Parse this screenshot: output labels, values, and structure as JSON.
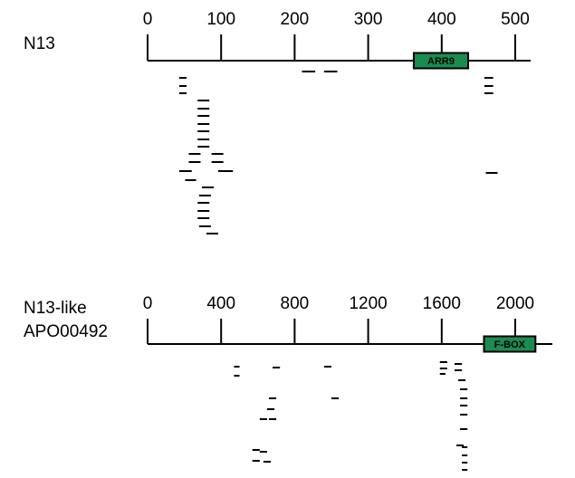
{
  "panels": [
    {
      "label_lines": [
        "N13"
      ],
      "axis": {
        "min": 0,
        "max": 500,
        "ticks": [
          0,
          100,
          200,
          300,
          400,
          500
        ],
        "tick_labels": [
          "0",
          "100",
          "200",
          "300",
          "400",
          "500"
        ],
        "end": 520
      },
      "domain": {
        "label": "ARR9",
        "start": 362,
        "end": 436,
        "color": "#1a8c50"
      },
      "hits": [
        [
          43,
          53,
          86
        ],
        [
          43,
          53,
          95
        ],
        [
          43,
          53,
          103
        ],
        [
          210,
          228,
          79
        ],
        [
          240,
          258,
          79
        ],
        [
          458,
          470,
          86
        ],
        [
          458,
          470,
          95
        ],
        [
          458,
          470,
          103
        ],
        [
          68,
          84,
          111
        ],
        [
          68,
          84,
          120
        ],
        [
          68,
          84,
          128
        ],
        [
          68,
          84,
          137
        ],
        [
          68,
          84,
          145
        ],
        [
          68,
          84,
          154
        ],
        [
          68,
          84,
          162
        ],
        [
          56,
          72,
          170
        ],
        [
          87,
          103,
          170
        ],
        [
          56,
          72,
          179
        ],
        [
          87,
          103,
          179
        ],
        [
          43,
          60,
          189
        ],
        [
          96,
          116,
          189
        ],
        [
          460,
          476,
          191
        ],
        [
          51,
          66,
          199
        ],
        [
          74,
          90,
          207
        ],
        [
          70,
          86,
          216
        ],
        [
          68,
          84,
          224
        ],
        [
          68,
          84,
          233
        ],
        [
          68,
          84,
          241
        ],
        [
          80,
          96,
          258
        ],
        [
          70,
          86,
          250
        ]
      ]
    },
    {
      "label_lines": [
        "N13-like",
        "APO00492"
      ],
      "axis": {
        "min": 0,
        "max": 2000,
        "ticks": [
          0,
          400,
          800,
          1200,
          1600,
          2000
        ],
        "tick_labels": [
          "0",
          "400",
          "800",
          "1200",
          "1600",
          "2000"
        ],
        "end": 2120
      },
      "domain": {
        "label": "F-BOX",
        "start": 1830,
        "end": 2110,
        "color": "#1a8c50"
      },
      "hits": [
        [
          470,
          500,
          405
        ],
        [
          470,
          500,
          415
        ],
        [
          680,
          720,
          406
        ],
        [
          960,
          1000,
          405
        ],
        [
          1000,
          1040,
          440
        ],
        [
          1590,
          1630,
          400
        ],
        [
          1590,
          1630,
          407
        ],
        [
          1670,
          1710,
          402
        ],
        [
          1670,
          1710,
          409
        ],
        [
          1590,
          1620,
          413
        ],
        [
          1690,
          1730,
          420
        ],
        [
          1700,
          1740,
          430
        ],
        [
          1700,
          1740,
          440
        ],
        [
          1700,
          1740,
          448
        ],
        [
          1700,
          1740,
          458
        ],
        [
          1700,
          1740,
          474
        ],
        [
          1680,
          1720,
          492
        ],
        [
          1710,
          1740,
          494
        ],
        [
          1710,
          1740,
          503
        ],
        [
          1710,
          1740,
          511
        ],
        [
          1710,
          1740,
          519
        ],
        [
          660,
          700,
          440
        ],
        [
          650,
          690,
          452
        ],
        [
          610,
          650,
          463
        ],
        [
          660,
          700,
          463
        ],
        [
          570,
          610,
          497
        ],
        [
          610,
          650,
          499
        ],
        [
          570,
          610,
          509
        ],
        [
          630,
          670,
          510
        ]
      ]
    }
  ]
}
